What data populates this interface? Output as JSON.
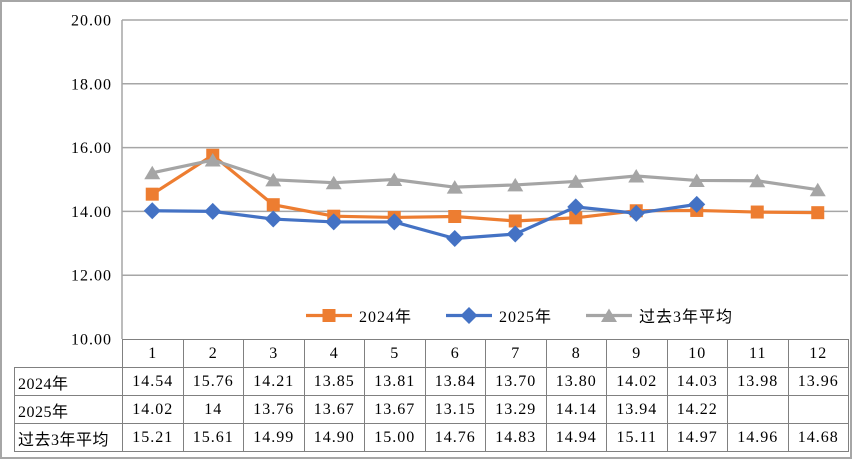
{
  "chart_data": {
    "type": "line",
    "title": "",
    "xlabel": "",
    "ylabel": "",
    "categories": [
      "1",
      "2",
      "3",
      "4",
      "5",
      "6",
      "7",
      "8",
      "9",
      "10",
      "11",
      "12"
    ],
    "series": [
      {
        "name": "2024年",
        "color": "#ED7D31",
        "marker": "square",
        "values": [
          14.54,
          15.76,
          14.21,
          13.85,
          13.81,
          13.84,
          13.7,
          13.8,
          14.02,
          14.03,
          13.98,
          13.96
        ]
      },
      {
        "name": "2025年",
        "color": "#4472C4",
        "marker": "diamond",
        "values": [
          14.02,
          14,
          13.76,
          13.67,
          13.67,
          13.15,
          13.29,
          14.14,
          13.94,
          14.22,
          null,
          null
        ]
      },
      {
        "name": "过去3年平均",
        "color": "#A5A5A5",
        "marker": "triangle",
        "values": [
          15.21,
          15.61,
          14.99,
          14.9,
          15.0,
          14.76,
          14.83,
          14.94,
          15.11,
          14.97,
          14.96,
          14.68
        ]
      }
    ],
    "ylim": [
      10,
      20
    ],
    "yticks": [
      10,
      12,
      14,
      16,
      18,
      20
    ],
    "ytick_labels": [
      "10.00",
      "12.00",
      "14.00",
      "16.00",
      "18.00",
      "20.00"
    ],
    "grid": true,
    "legend_position": "bottom-inside-horizontal"
  },
  "table": {
    "corner_label": "",
    "col_headers": [
      "1",
      "2",
      "3",
      "4",
      "5",
      "6",
      "7",
      "8",
      "9",
      "10",
      "11",
      "12"
    ],
    "rows": [
      {
        "label": "2024年",
        "cells": [
          "14.54",
          "15.76",
          "14.21",
          "13.85",
          "13.81",
          "13.84",
          "13.70",
          "13.80",
          "14.02",
          "14.03",
          "13.98",
          "13.96"
        ]
      },
      {
        "label": "2025年",
        "cells": [
          "14.02",
          "14",
          "13.76",
          "13.67",
          "13.67",
          "13.15",
          "13.29",
          "14.14",
          "13.94",
          "14.22",
          "",
          ""
        ]
      },
      {
        "label": "过去3年平均",
        "cells": [
          "15.21",
          "15.61",
          "14.99",
          "14.90",
          "15.00",
          "14.76",
          "14.83",
          "14.94",
          "15.11",
          "14.97",
          "14.96",
          "14.68"
        ]
      }
    ]
  },
  "colors": {
    "series_2024": "#ED7D31",
    "series_2025": "#4472C4",
    "series_avg": "#A5A5A5",
    "gridline": "#A6A6A6",
    "axis_line": "#A6A6A6",
    "table_border": "#808080",
    "frame_border": "#A6A6A6",
    "text": "#000000",
    "background": "#FFFFFF"
  }
}
